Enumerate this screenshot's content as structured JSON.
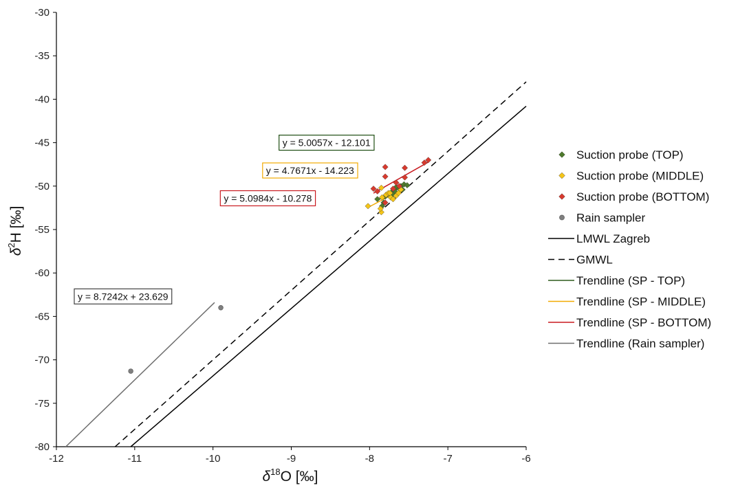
{
  "chart_data": {
    "type": "scatter",
    "xlabel": {
      "base": "δ",
      "sup": "18",
      "rest": "O [‰]"
    },
    "ylabel": {
      "base": "δ",
      "sup": "2",
      "rest": "H [‰]"
    },
    "xlim": [
      -12,
      -6
    ],
    "ylim": [
      -80,
      -30
    ],
    "x_ticks": [
      -12,
      -11,
      -10,
      -9,
      -8,
      -7,
      -6
    ],
    "y_ticks": [
      -80,
      -75,
      -70,
      -65,
      -60,
      -55,
      -50,
      -45,
      -40,
      -35,
      -30
    ],
    "grid": false,
    "legend_position": "right",
    "series": [
      {
        "name": "Suction probe (TOP)",
        "kind": "points",
        "marker": "diamond",
        "color": "#4e7a2c",
        "points": [
          [
            -7.9,
            -51.5
          ],
          [
            -7.82,
            -51.9
          ],
          [
            -7.8,
            -51.2
          ],
          [
            -7.75,
            -50.9
          ],
          [
            -7.72,
            -50.7
          ],
          [
            -7.68,
            -50.6
          ],
          [
            -7.66,
            -50.1
          ],
          [
            -7.62,
            -50.3
          ],
          [
            -7.6,
            -50.0
          ],
          [
            -7.56,
            -49.8
          ],
          [
            -7.52,
            -49.9
          ],
          [
            -7.58,
            -50.4
          ],
          [
            -7.7,
            -51.0
          ],
          [
            -7.84,
            -52.3
          ]
        ]
      },
      {
        "name": "Suction probe (MIDDLE)",
        "kind": "points",
        "marker": "diamond",
        "color": "#f5c518",
        "points": [
          [
            -8.02,
            -52.3
          ],
          [
            -7.85,
            -53.0
          ],
          [
            -7.86,
            -52.6
          ],
          [
            -7.84,
            -51.3
          ],
          [
            -7.79,
            -51.0
          ],
          [
            -7.76,
            -50.8
          ],
          [
            -7.73,
            -51.3
          ],
          [
            -7.7,
            -51.5
          ],
          [
            -7.66,
            -51.1
          ],
          [
            -7.63,
            -50.8
          ],
          [
            -7.6,
            -50.4
          ],
          [
            -7.85,
            -50.2
          ],
          [
            -7.74,
            -50.8
          ]
        ]
      },
      {
        "name": "Suction probe (BOTTOM)",
        "kind": "points",
        "marker": "diamond",
        "color": "#d83a2e",
        "points": [
          [
            -7.95,
            -50.3
          ],
          [
            -7.9,
            -50.6
          ],
          [
            -7.8,
            -47.8
          ],
          [
            -7.8,
            -48.9
          ],
          [
            -7.66,
            -49.6
          ],
          [
            -7.62,
            -50.0
          ],
          [
            -7.55,
            -47.9
          ],
          [
            -7.55,
            -49.0
          ],
          [
            -7.3,
            -47.3
          ],
          [
            -7.25,
            -47.0
          ],
          [
            -7.7,
            -50.3
          ],
          [
            -7.8,
            -51.9
          ]
        ]
      },
      {
        "name": "Rain sampler",
        "kind": "points",
        "marker": "circle",
        "color": "#7f7f7f",
        "points": [
          [
            -11.05,
            -71.3
          ],
          [
            -9.9,
            -64.0
          ]
        ]
      },
      {
        "name": "LMWL Zagreb",
        "kind": "line",
        "color": "#000000",
        "dash": "",
        "points": [
          [
            -11.05,
            -80
          ],
          [
            -6,
            -40.8
          ]
        ]
      },
      {
        "name": "GMWL",
        "kind": "line",
        "color": "#000000",
        "dash": "9,6",
        "points": [
          [
            -11.25,
            -80
          ],
          [
            -6,
            -38.0
          ]
        ]
      },
      {
        "name": "Trendline (SP - TOP)",
        "kind": "line",
        "color": "#2e5a1c",
        "dash": "",
        "points": [
          [
            -7.9,
            -51.65
          ],
          [
            -7.52,
            -49.75
          ]
        ]
      },
      {
        "name": "Trendline (SP - MIDDLE)",
        "kind": "line",
        "color": "#f2a900",
        "dash": "",
        "points": [
          [
            -8.02,
            -52.46
          ],
          [
            -7.6,
            -50.45
          ]
        ]
      },
      {
        "name": "Trendline (SP - BOTTOM)",
        "kind": "line",
        "color": "#c8191e",
        "dash": "",
        "points": [
          [
            -7.95,
            -50.81
          ],
          [
            -7.25,
            -47.24
          ]
        ]
      },
      {
        "name": "Trendline (Rain sampler)",
        "kind": "line",
        "color": "#6e6e6e",
        "dash": "",
        "points": [
          [
            -11.88,
            -80
          ],
          [
            -9.98,
            -63.4
          ]
        ]
      }
    ],
    "annotations": [
      {
        "text": "y = 5.0057x - 12.101",
        "border": "#1e4d12",
        "at_x": -8.55,
        "at_y": -45.0
      },
      {
        "text": "y = 4.7671x - 14.223",
        "border": "#f2a900",
        "at_x": -8.76,
        "at_y": -48.2
      },
      {
        "text": "y = 5.0984x - 10.278",
        "border": "#c8191e",
        "at_x": -9.3,
        "at_y": -51.4
      },
      {
        "text": "y = 8.7242x + 23.629",
        "border": "#404040",
        "at_x": -11.15,
        "at_y": -62.7
      }
    ]
  }
}
